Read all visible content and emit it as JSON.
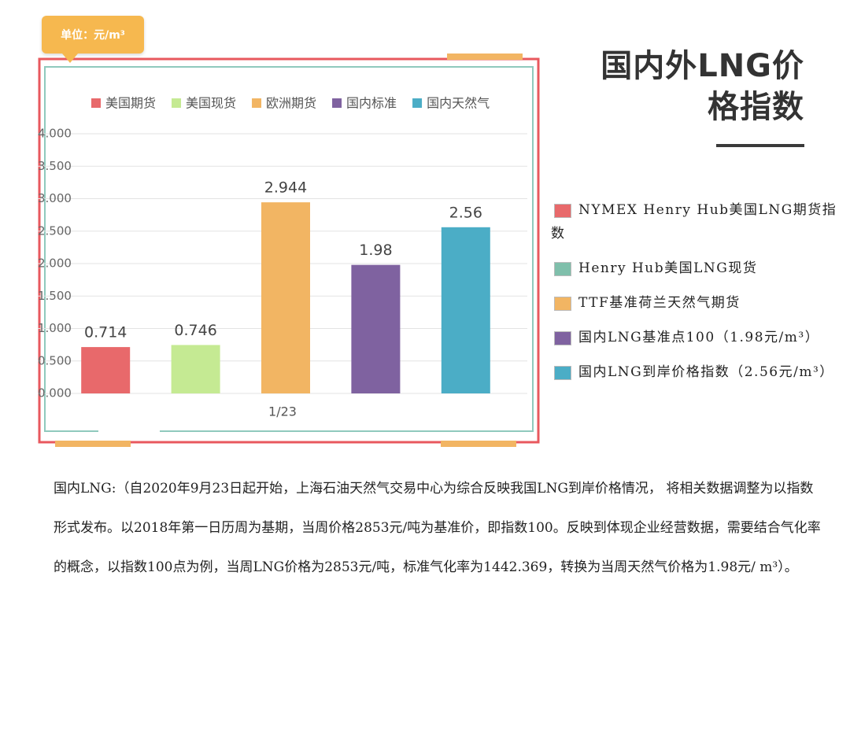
{
  "unit_label": "单位：元/m³",
  "page_title": "国内外LNG价格指数",
  "notes": [
    {
      "text": "NYMEX Henry Hub美国LNG期货指数",
      "color": "#e8696b"
    },
    {
      "text": "Henry Hub美国LNG现货",
      "color": "#7fbfab"
    },
    {
      "text": "TTF基准荷兰天然气期货",
      "color": "#f2b563"
    },
    {
      "text": "国内LNG基准点100（1.98元/m³）",
      "color": "#7f62a0"
    },
    {
      "text": "国内LNG到岸价格指数（2.56元/m³）",
      "color": "#4badc6"
    }
  ],
  "description": "国内LNG:（自2020年9月23日起开始，上海石油天然气交易中心为综合反映我国LNG到岸价格情况， 将相关数据调整为以指数形式发布。以2018年第一日历周为基期，当周价格2853元/吨为基准价，即指数100。反映到体现企业经营数据，需要结合气化率的概念，以指数100点为例，当周LNG价格为2853元/吨，标准气化率为1442.369，转换为当周天然气价格为1.98元/ m³）。",
  "chart_data": {
    "type": "bar",
    "categories": [
      "1/23"
    ],
    "series": [
      {
        "name": "美国期货",
        "color": "#e8696b",
        "values": [
          0.714
        ]
      },
      {
        "name": "美国现货",
        "color": "#c5ea93",
        "values": [
          0.746
        ]
      },
      {
        "name": "欧洲期货",
        "color": "#f2b563",
        "values": [
          2.944
        ]
      },
      {
        "name": "国内标准",
        "color": "#7f62a0",
        "values": [
          1.98
        ]
      },
      {
        "name": "国内天然气",
        "color": "#4badc6",
        "values": [
          2.56
        ]
      }
    ],
    "ylim": [
      0,
      4
    ],
    "yticks": [
      {
        "value": 0,
        "label": "0.000"
      },
      {
        "value": 0.5,
        "label": "0.500"
      },
      {
        "value": 1,
        "label": "1.000"
      },
      {
        "value": 1.5,
        "label": "1.500"
      },
      {
        "value": 2,
        "label": "2.000"
      },
      {
        "value": 2.5,
        "label": "2.500"
      },
      {
        "value": 3,
        "label": "3.000"
      },
      {
        "value": 3.5,
        "label": "3.500"
      },
      {
        "value": 4,
        "label": "4.000"
      }
    ],
    "grid": true,
    "legend": "top"
  }
}
